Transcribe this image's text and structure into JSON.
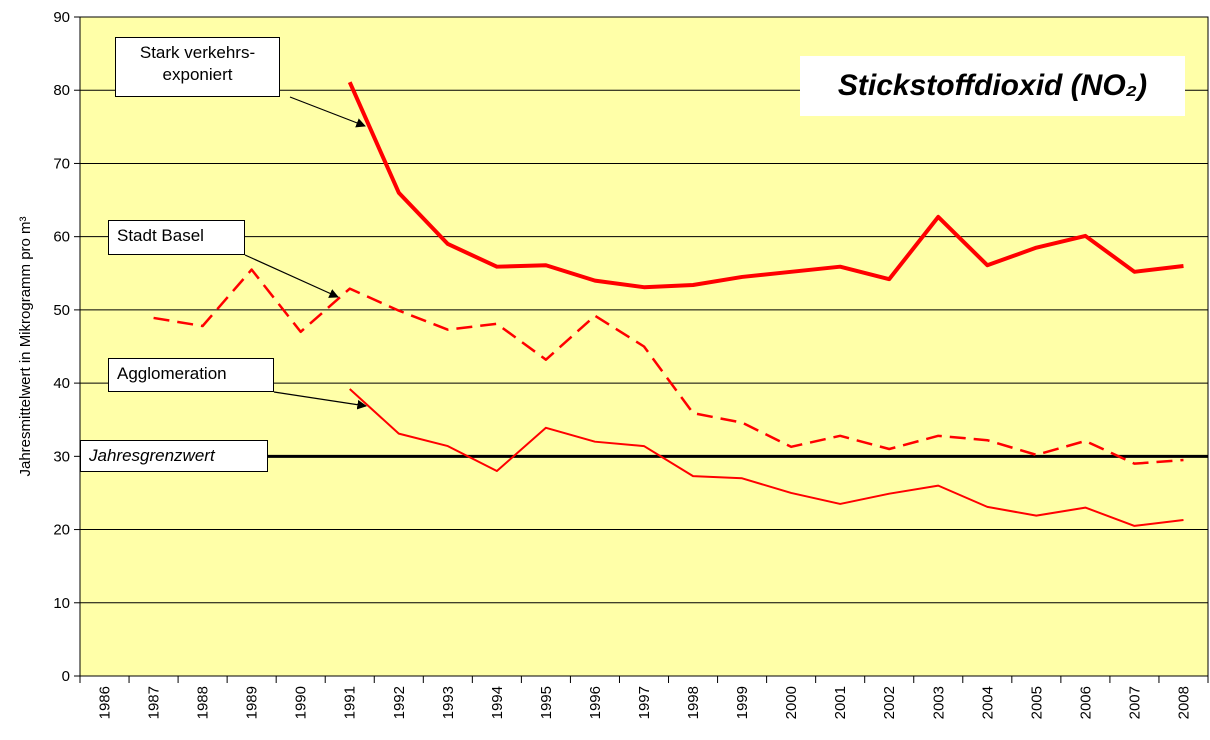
{
  "chart_data": {
    "type": "line",
    "title": "Stickstoffdioxid (NO₂)",
    "y_label": "Jahresmittelwert in Mikrogramm pro m³",
    "categories": [
      "1986",
      "1987",
      "1988",
      "1989",
      "1990",
      "1991",
      "1992",
      "1993",
      "1994",
      "1995",
      "1996",
      "1997",
      "1998",
      "1999",
      "2000",
      "2001",
      "2002",
      "2003",
      "2004",
      "2005",
      "2006",
      "2007",
      "2008"
    ],
    "series": [
      {
        "name": "Stark verkehrs-exponiert",
        "color": "#ff0000",
        "style": "thick",
        "values": [
          null,
          null,
          null,
          null,
          null,
          81.1,
          66,
          59,
          55.9,
          56.1,
          54,
          53.1,
          53.4,
          54.5,
          55.2,
          55.9,
          54.2,
          62.7,
          56.1,
          58.5,
          60.1,
          55.2,
          56
        ]
      },
      {
        "name": "Stadt Basel",
        "color": "#ff0000",
        "style": "dashed",
        "values": [
          null,
          48.9,
          47.8,
          55.5,
          47,
          52.9,
          49.9,
          47.3,
          48.1,
          43.2,
          49.2,
          45,
          35.9,
          34.6,
          31.3,
          32.8,
          31,
          32.8,
          32.2,
          30.2,
          32.1,
          29,
          29.5
        ]
      },
      {
        "name": "Agglomeration",
        "color": "#ff0000",
        "style": "thin",
        "values": [
          null,
          null,
          null,
          null,
          null,
          39.2,
          33.1,
          31.4,
          28,
          33.9,
          32,
          31.4,
          27.3,
          27,
          25,
          23.5,
          24.9,
          26,
          23.1,
          21.9,
          23,
          20.5,
          21.3
        ]
      }
    ],
    "reference_lines": [
      {
        "value": 30,
        "label": "Jahresgrenzwert",
        "color": "#000000"
      }
    ],
    "ylim": [
      0,
      90
    ],
    "yticks": [
      0,
      10,
      20,
      30,
      40,
      50,
      60,
      70,
      80,
      90
    ],
    "grid": true,
    "background": "#ffffa8"
  }
}
